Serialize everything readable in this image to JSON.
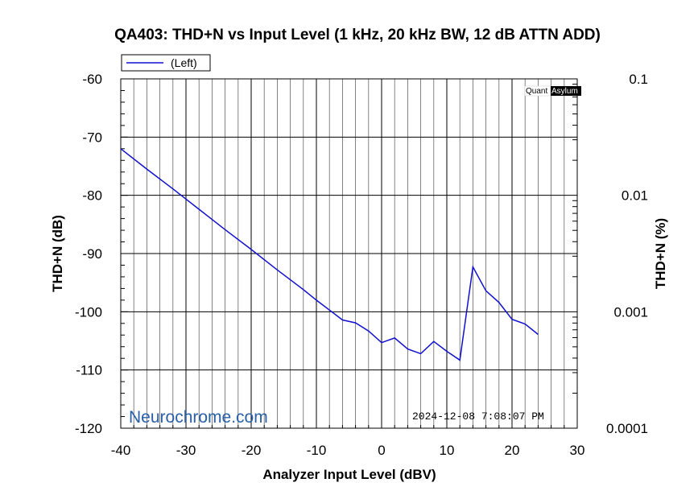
{
  "chart_data": {
    "type": "line",
    "title": "QA403: THD+N vs Input Level (1 kHz, 20 kHz BW, 12 dB ATTN ADD)",
    "xlabel": "Analyzer Input Level (dBV)",
    "ylabel": "THD+N (dB)",
    "ylabel_right": "THD+N (%)",
    "xlim": [
      -40,
      30
    ],
    "ylim": [
      -120,
      -60
    ],
    "x_ticks": [
      "-40",
      "-30",
      "-20",
      "-10",
      "0",
      "10",
      "20",
      "30"
    ],
    "y_ticks": [
      "-60",
      "-70",
      "-80",
      "-90",
      "-100",
      "-110",
      "-120"
    ],
    "right_ticks": [
      "0.1",
      "0.01",
      "0.001",
      "0.0001"
    ],
    "grid": true,
    "legend": "top-left",
    "series": [
      {
        "name": "(Left)",
        "color": "#1010d0",
        "x": [
          -40,
          -36,
          -32,
          -28,
          -24,
          -20,
          -16,
          -12,
          -10,
          -8,
          -6,
          -4,
          -2,
          0,
          2,
          4,
          6,
          8,
          10,
          12,
          14,
          16,
          18,
          20,
          22,
          24
        ],
        "y": [
          -72,
          -75.5,
          -78.9,
          -82.4,
          -85.9,
          -89.3,
          -92.8,
          -96.2,
          -98,
          -99.7,
          -101.4,
          -101.9,
          -103.3,
          -105.3,
          -104.5,
          -106.4,
          -107.2,
          -105.1,
          -106.8,
          -108.3,
          -92.3,
          -96.4,
          -98.4,
          -101.3,
          -102.1,
          -103.9
        ]
      }
    ],
    "watermark": "Neurochrome.com",
    "timestamp": "2024-12-08  7:08:07 PM",
    "logo": [
      "Quant",
      "Asylum"
    ]
  }
}
